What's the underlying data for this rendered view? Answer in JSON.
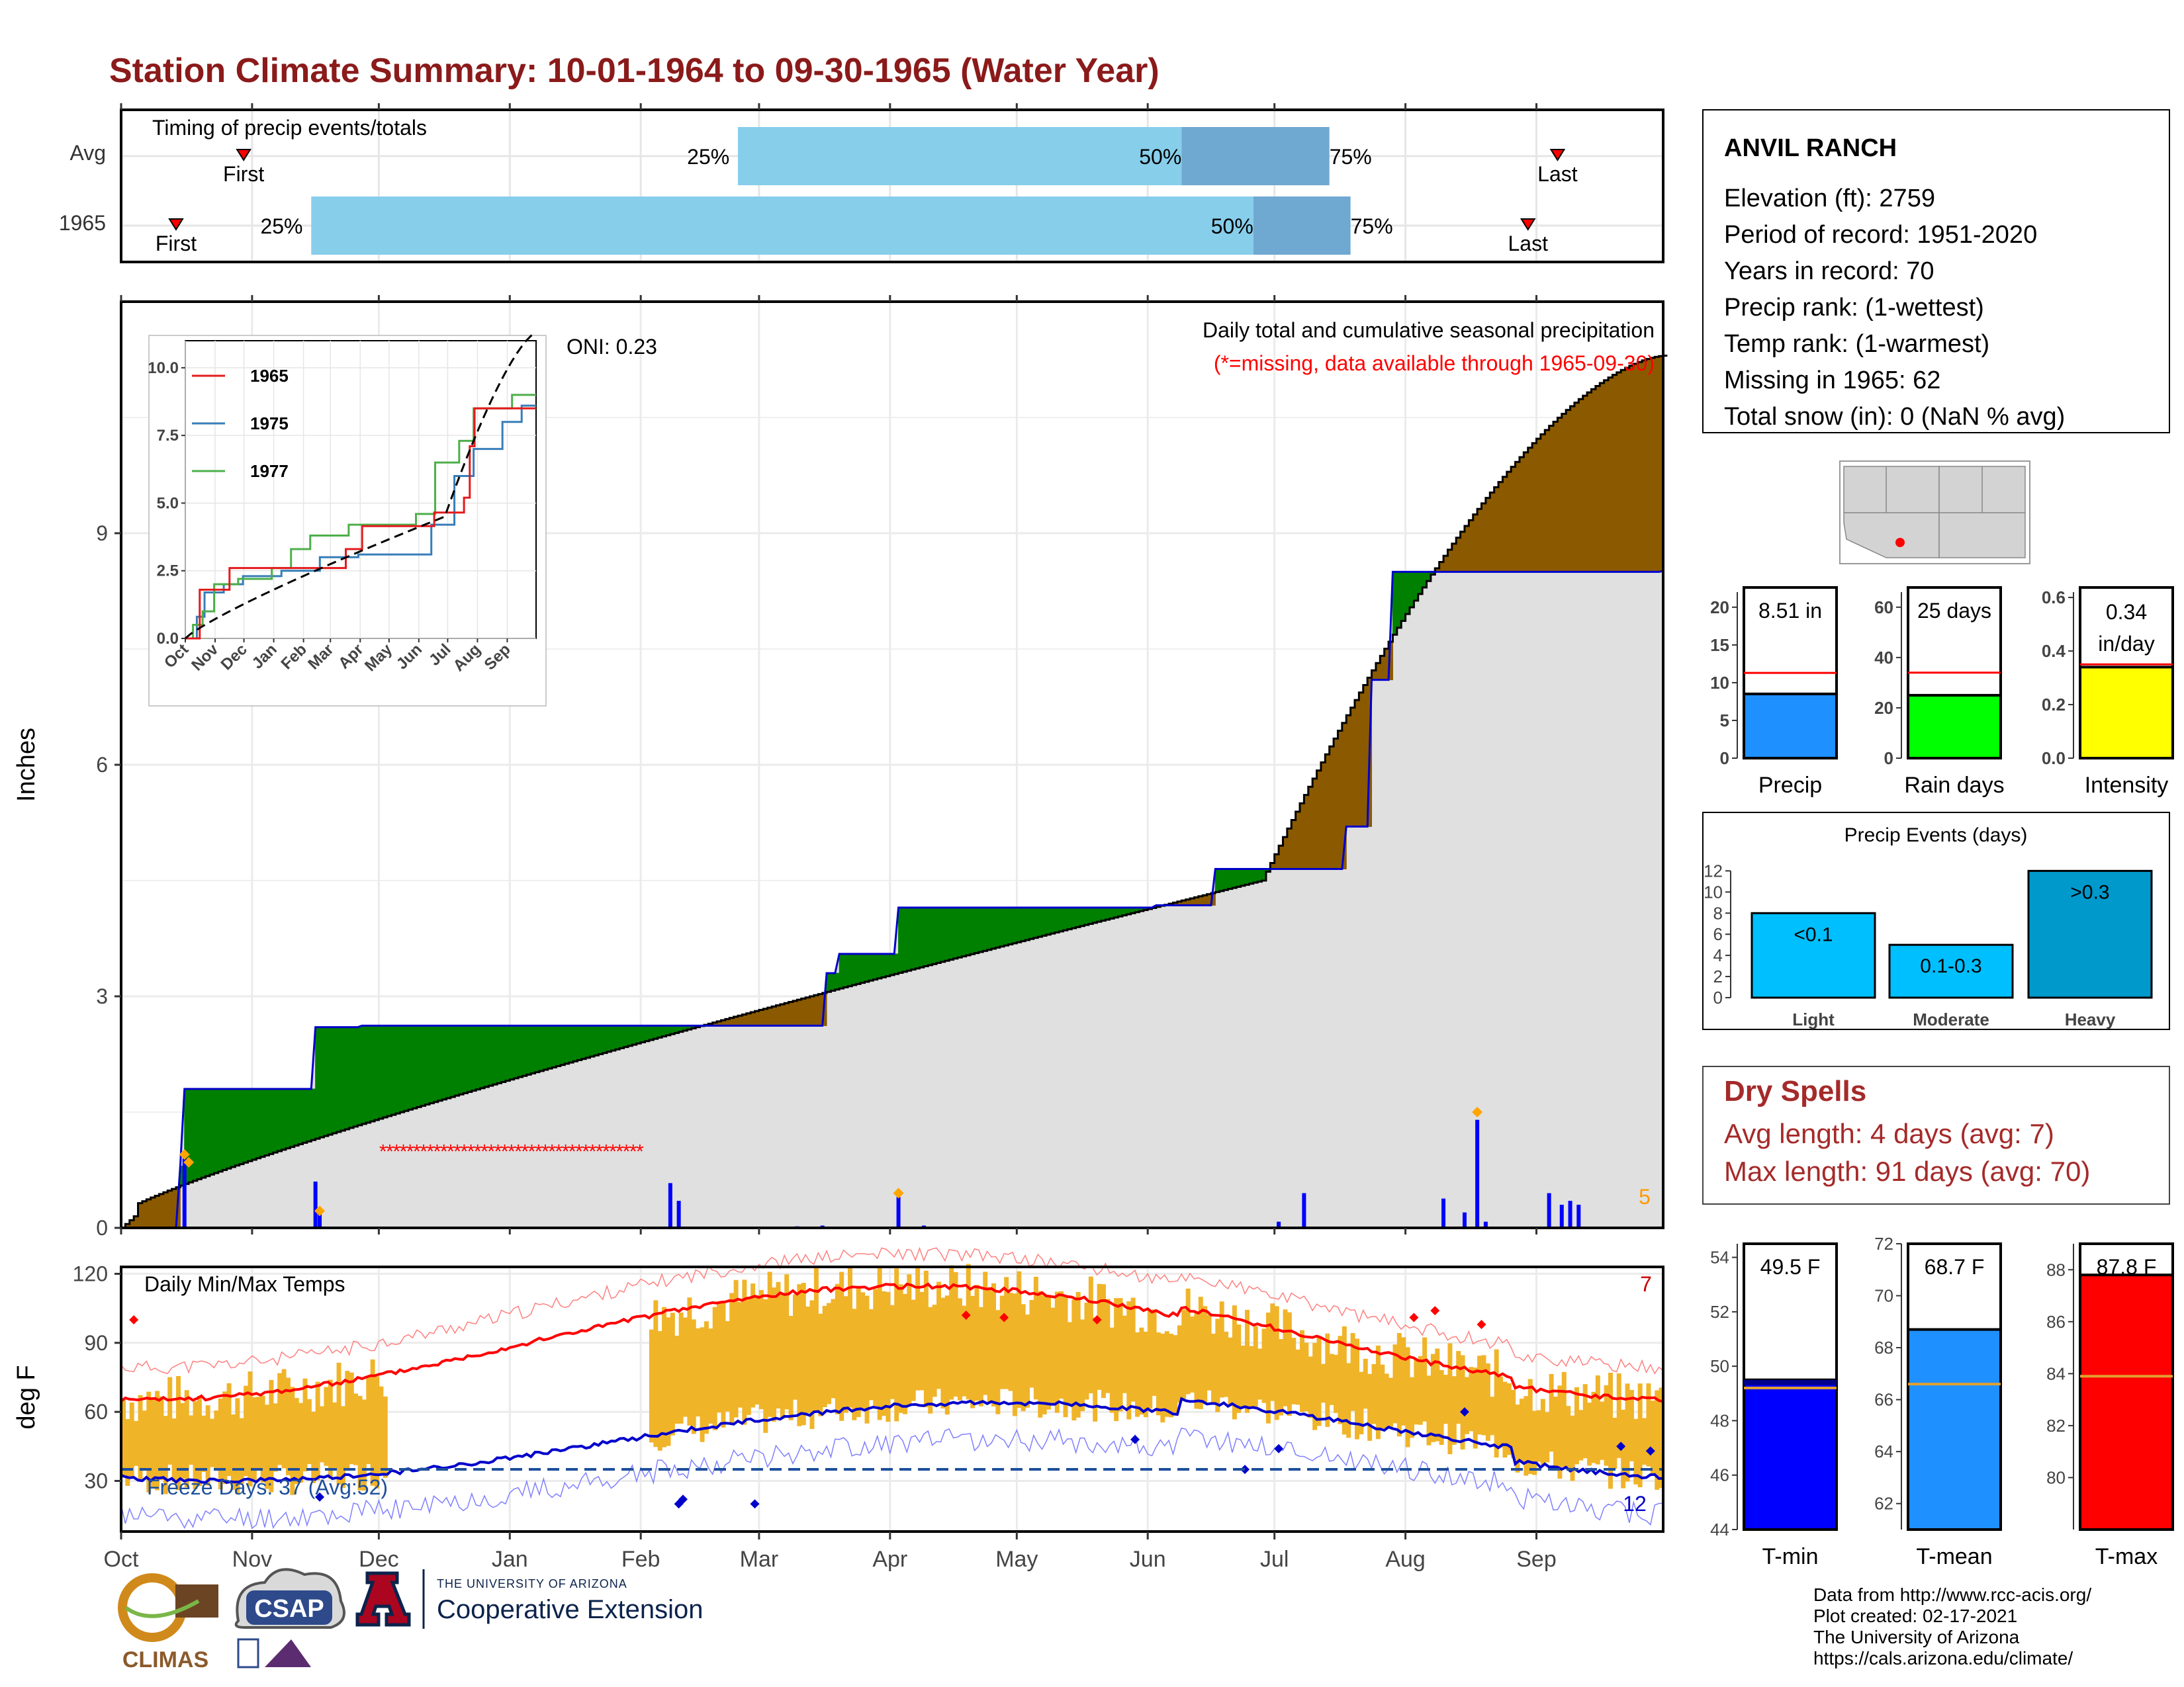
{
  "title": "Station Climate Summary: 10-01-1964 to 09-30-1965 (Water Year)",
  "months": [
    "Oct",
    "Nov",
    "Dec",
    "Jan",
    "Feb",
    "Mar",
    "Apr",
    "May",
    "Jun",
    "Jul",
    "Aug",
    "Sep"
  ],
  "timing_panel": {
    "label": "Timing of precip events/totals",
    "rows": [
      {
        "label": "Avg",
        "first": "First",
        "last": "Last",
        "p25": "25%",
        "p50": "50%",
        "p75": "75%",
        "first_day": 29,
        "p25_day": 146,
        "p50_day": 251,
        "p75_day": 286,
        "last_day": 340
      },
      {
        "label": "1965",
        "first": "First",
        "last": "Last",
        "p25": "25%",
        "p50": "50%",
        "p75": "75%",
        "first_day": 13,
        "p25_day": 45,
        "p50_day": 268,
        "p75_day": 291,
        "last_day": 333
      }
    ]
  },
  "precip_panel": {
    "ylabel": "Inches",
    "yticks": [
      0,
      3,
      6,
      9
    ],
    "ymax": 12,
    "oni": "ONI: 0.23",
    "subtitle": "Daily total and cumulative seasonal precipitation",
    "missing_note": "(*=missing, data available through 1965-09-30)",
    "missing_count": "5"
  },
  "inset": {
    "yticks": [
      "0.0",
      "2.5",
      "5.0",
      "7.5",
      "10.0"
    ],
    "months": [
      "Oct",
      "Nov",
      "Dec",
      "Jan",
      "Feb",
      "Mar",
      "Apr",
      "May",
      "Jun",
      "Jul",
      "Aug",
      "Sep"
    ],
    "legend": [
      "1965",
      "1975",
      "1977"
    ],
    "colors": [
      "#e41a1c",
      "#377eb8",
      "#4daf4a"
    ]
  },
  "temp_panel": {
    "ylabel": "deg F",
    "label": "Daily Min/Max Temps",
    "yticks": [
      30,
      60,
      90,
      120
    ],
    "freeze": "Freeze Days: 37 (Avg:52)",
    "max_count": "7",
    "min_count": "12"
  },
  "station": {
    "name": "ANVIL RANCH",
    "lines": [
      "Elevation (ft): 2759",
      "Period of record: 1951-2020",
      "Years in record: 70",
      "Precip rank:  (1-wettest)",
      "Temp rank:  (1-warmest)",
      "Missing in 1965: 62",
      "Total snow (in): 0 (NaN % avg)"
    ]
  },
  "precip_bars": [
    {
      "label": "Precip",
      "value_text": "8.51 in",
      "value": 8.51,
      "avg": 11.3,
      "max": 22,
      "ticks": [
        "0",
        "5",
        "10",
        "15",
        "20"
      ],
      "tickvals": [
        0,
        5,
        10,
        15,
        20
      ],
      "color": "#1e90ff"
    },
    {
      "label": "Rain days",
      "value_text": "25 days",
      "value": 25,
      "avg": 34,
      "max": 66,
      "ticks": [
        "0",
        "20",
        "40",
        "60"
      ],
      "tickvals": [
        0,
        20,
        40,
        60
      ],
      "color": "#00ff00"
    },
    {
      "label": "Intensity",
      "value_text": "0.34",
      "value_text2": "in/day",
      "value": 0.34,
      "avg": 0.35,
      "max": 0.62,
      "ticks": [
        "0.0",
        "0.2",
        "0.4",
        "0.6"
      ],
      "tickvals": [
        0,
        0.2,
        0.4,
        0.6
      ],
      "color": "#ffff00"
    }
  ],
  "precip_events": {
    "title": "Precip Events (days)",
    "yticks": [
      0,
      2,
      4,
      6,
      8,
      10,
      12
    ],
    "bars": [
      {
        "cat": "Light",
        "label": "<0.1",
        "value": 8,
        "color": "#00bfff"
      },
      {
        "cat": "Moderate",
        "label": "0.1-0.3",
        "value": 5,
        "color": "#00bfff"
      },
      {
        "cat": "Heavy",
        "label": ">0.3",
        "value": 12,
        "color": "#0099cc"
      }
    ]
  },
  "dry_spells": {
    "title": "Dry Spells",
    "lines": [
      "Avg length: 4 days (avg: 7)",
      "Max length: 91 days (avg: 70)"
    ]
  },
  "temp_bars": [
    {
      "label": "T-min",
      "value_text": "49.5 F",
      "value": 49.5,
      "avg": 49.2,
      "min": 44,
      "max": 54.5,
      "ticks": [
        "44",
        "46",
        "48",
        "50",
        "52",
        "54"
      ],
      "tickvals": [
        44,
        46,
        48,
        50,
        52,
        54
      ],
      "color": "#0000ff"
    },
    {
      "label": "T-mean",
      "value_text": "68.7 F",
      "value": 68.7,
      "avg": 66.6,
      "min": 61,
      "max": 72,
      "ticks": [
        "62",
        "64",
        "66",
        "68",
        "70",
        "72"
      ],
      "tickvals": [
        62,
        64,
        66,
        68,
        70,
        72
      ],
      "color": "#1e90ff"
    },
    {
      "label": "T-max",
      "value_text": "87.8 F",
      "value": 87.8,
      "avg": 83.9,
      "min": 78,
      "max": 89,
      "ticks": [
        "80",
        "82",
        "84",
        "86",
        "88"
      ],
      "tickvals": [
        80,
        82,
        84,
        86,
        88
      ],
      "color": "#ff0000"
    }
  ],
  "footer": [
    "Data from http://www.rcc-acis.org/",
    "Plot created: 02-17-2021",
    "The University of Arizona",
    "https://cals.arizona.edu/climate/"
  ],
  "logos": {
    "climas": "CLIMAS",
    "csap": "CSAP",
    "ua_small": "THE UNIVERSITY OF ARIZONA",
    "ua_big": "Cooperative Extension"
  },
  "chart_data": [
    {
      "type": "line",
      "title": "Daily total and cumulative seasonal precipitation",
      "ylabel": "Inches",
      "ylim": [
        0,
        12
      ],
      "series": [
        {
          "name": "1965",
          "x": [
            0,
            13,
            14,
            15,
            45,
            46,
            56,
            57,
            166,
            167,
            169,
            170,
            183,
            184,
            244,
            245,
            258,
            259,
            289,
            290,
            295,
            296,
            300,
            301,
            365
          ],
          "values": [
            0,
            0,
            0.8,
            1.8,
            1.8,
            2.6,
            2.6,
            2.62,
            2.62,
            3.3,
            3.3,
            3.55,
            3.55,
            4.15,
            4.15,
            4.18,
            4.18,
            4.65,
            4.65,
            5.2,
            5.2,
            7.1,
            7.1,
            8.5,
            8.51
          ]
        }
      ],
      "daily_precip": [
        {
          "day": 15,
          "value": 0.9
        },
        {
          "day": 46,
          "value": 0.6
        },
        {
          "day": 47,
          "value": 0.2
        },
        {
          "day": 130,
          "value": 0.58
        },
        {
          "day": 132,
          "value": 0.35
        },
        {
          "day": 160,
          "value": 0.02
        },
        {
          "day": 166,
          "value": 0.03
        },
        {
          "day": 184,
          "value": 0.4
        },
        {
          "day": 190,
          "value": 0.03
        },
        {
          "day": 274,
          "value": 0.08
        },
        {
          "day": 280,
          "value": 0.45
        },
        {
          "day": 313,
          "value": 0.38
        },
        {
          "day": 318,
          "value": 0.2
        },
        {
          "day": 321,
          "value": 1.4
        },
        {
          "day": 323,
          "value": 0.08
        },
        {
          "day": 338,
          "value": 0.45
        },
        {
          "day": 341,
          "value": 0.3
        },
        {
          "day": 343,
          "value": 0.35
        },
        {
          "day": 345,
          "value": 0.3
        }
      ]
    },
    {
      "type": "bar",
      "title": "Precip Events (days)",
      "categories": [
        "Light",
        "Moderate",
        "Heavy"
      ],
      "values": [
        8,
        5,
        12
      ]
    },
    {
      "type": "bar",
      "categories": [
        "T-min",
        "T-mean",
        "T-max"
      ],
      "values": [
        49.5,
        68.7,
        87.8
      ],
      "averages": [
        49.2,
        66.6,
        83.9
      ]
    },
    {
      "type": "bar",
      "categories": [
        "Precip",
        "Rain days",
        "Intensity"
      ],
      "values": [
        8.51,
        25,
        0.34
      ],
      "averages": [
        11.3,
        34,
        0.35
      ]
    }
  ]
}
